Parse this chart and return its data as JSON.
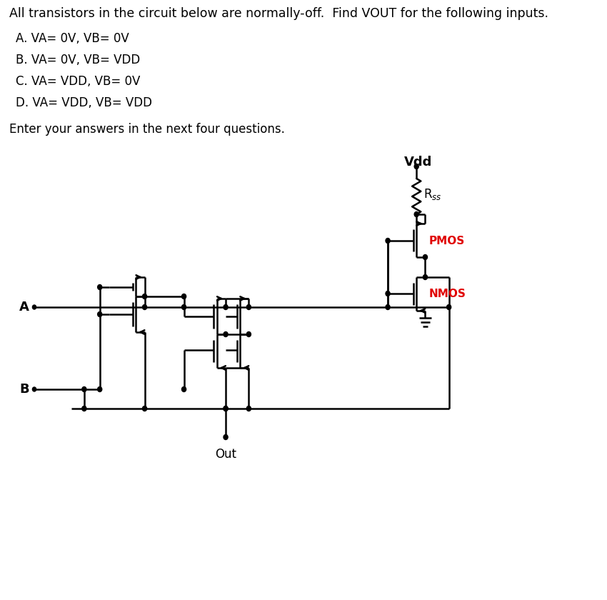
{
  "title": "All transistors in the circuit below are normally-off.  Find VOUT for the following inputs.",
  "items": [
    "A. VA= 0V, VB= 0V",
    "B. VA= 0V, VB= VDD",
    "C. VA= VDD, VB= 0V",
    "D. VA= VDD, VB= VDD"
  ],
  "footer": "Enter your answers in the next four questions.",
  "bg": "#ffffff",
  "lc": "#000000",
  "red": "#e00000",
  "lw": 1.8,
  "lw2": 1.5
}
